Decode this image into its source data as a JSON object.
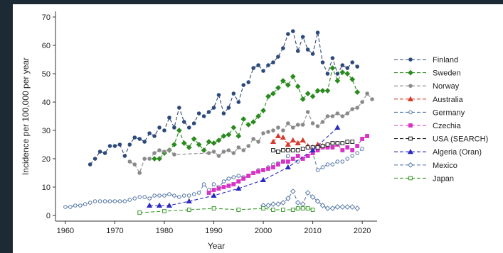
{
  "chart_data": {
    "type": "line",
    "title": "",
    "xlabel": "Year",
    "ylabel": "Incidence per 100,000 per year",
    "xlim": [
      1958,
      2023
    ],
    "ylim": [
      -2,
      72
    ],
    "xticks": [
      "1960",
      "1970",
      "1980",
      "1990",
      "2000",
      "2010",
      "2020"
    ],
    "yticks": [
      "0",
      "10",
      "20",
      "30",
      "40",
      "50",
      "60",
      "70"
    ],
    "legend": "right",
    "grid": false,
    "series": [
      {
        "name": "Finland",
        "color": "#2e4a7a",
        "marker": "circle",
        "points": [
          [
            1965,
            18
          ],
          [
            1966,
            20
          ],
          [
            1967,
            22.5
          ],
          [
            1968,
            22
          ],
          [
            1969,
            24.5
          ],
          [
            1970,
            24.5
          ],
          [
            1971,
            25
          ],
          [
            1972,
            21
          ],
          [
            1973,
            25
          ],
          [
            1974,
            27.5
          ],
          [
            1975,
            27
          ],
          [
            1976,
            26
          ],
          [
            1977,
            29
          ],
          [
            1978,
            28
          ],
          [
            1979,
            31
          ],
          [
            1980,
            30
          ],
          [
            1981,
            34.5
          ],
          [
            1982,
            31
          ],
          [
            1983,
            38
          ],
          [
            1984,
            33
          ],
          [
            1985,
            31
          ],
          [
            1986,
            32.5
          ],
          [
            1987,
            36
          ],
          [
            1988,
            35
          ],
          [
            1989,
            36.5
          ],
          [
            1990,
            38
          ],
          [
            1991,
            42.5
          ],
          [
            1992,
            36
          ],
          [
            1993,
            38
          ],
          [
            1994,
            43
          ],
          [
            1995,
            40
          ],
          [
            1996,
            46
          ],
          [
            1997,
            47
          ],
          [
            1998,
            52
          ],
          [
            1999,
            53
          ],
          [
            2000,
            51
          ],
          [
            2001,
            53
          ],
          [
            2002,
            54
          ],
          [
            2003,
            56
          ],
          [
            2004,
            59
          ],
          [
            2005,
            64
          ],
          [
            2006,
            65
          ],
          [
            2007,
            58
          ],
          [
            2008,
            63
          ],
          [
            2009,
            58.5
          ],
          [
            2010,
            57
          ],
          [
            2011,
            64.5
          ],
          [
            2012,
            54
          ],
          [
            2013,
            50
          ],
          [
            2014,
            55.5
          ],
          [
            2015,
            50
          ],
          [
            2016,
            53
          ],
          [
            2017,
            52
          ],
          [
            2018,
            54
          ],
          [
            2019,
            52.5
          ]
        ]
      },
      {
        "name": "Sweden",
        "color": "#2a8a1e",
        "marker": "diamond",
        "points": [
          [
            1978,
            20
          ],
          [
            1979,
            20
          ],
          [
            1980,
            22
          ],
          [
            1981,
            23
          ],
          [
            1982,
            25
          ],
          [
            1983,
            30
          ],
          [
            1984,
            25.5
          ],
          [
            1985,
            24
          ],
          [
            1986,
            27
          ],
          [
            1987,
            25
          ],
          [
            1988,
            23
          ],
          [
            1989,
            26
          ],
          [
            1990,
            25.5
          ],
          [
            1991,
            26.5
          ],
          [
            1992,
            28
          ],
          [
            1993,
            28.5
          ],
          [
            1994,
            31
          ],
          [
            1995,
            28
          ],
          [
            1996,
            34
          ],
          [
            1997,
            32
          ],
          [
            1998,
            33
          ],
          [
            1999,
            35
          ],
          [
            2000,
            37
          ],
          [
            2001,
            42
          ],
          [
            2002,
            43
          ],
          [
            2003,
            45
          ],
          [
            2004,
            47.5
          ],
          [
            2005,
            46
          ],
          [
            2006,
            49
          ],
          [
            2007,
            45.5
          ],
          [
            2008,
            41
          ],
          [
            2009,
            43
          ],
          [
            2010,
            42
          ],
          [
            2011,
            44
          ],
          [
            2012,
            44
          ],
          [
            2013,
            44
          ],
          [
            2014,
            52
          ],
          [
            2015,
            47.5
          ],
          [
            2016,
            50.5
          ],
          [
            2017,
            50
          ],
          [
            2018,
            48
          ],
          [
            2019,
            43.5
          ]
        ]
      },
      {
        "name": "Norway",
        "color": "#8a8a8a",
        "marker": "circle",
        "points": [
          [
            1973,
            19
          ],
          [
            1974,
            18
          ],
          [
            1975,
            15
          ],
          [
            1976,
            20
          ],
          [
            1977,
            20
          ],
          [
            1978,
            22
          ],
          [
            1979,
            23
          ],
          [
            1980,
            22.5
          ],
          [
            1981,
            23
          ],
          [
            1982,
            21.5
          ],
          [
            1989,
            22
          ],
          [
            1990,
            22.5
          ],
          [
            1991,
            21
          ],
          [
            1992,
            22.5
          ],
          [
            1993,
            23
          ],
          [
            1994,
            22
          ],
          [
            1995,
            24
          ],
          [
            1996,
            23
          ],
          [
            1997,
            24.5
          ],
          [
            1998,
            27
          ],
          [
            1999,
            26
          ],
          [
            2000,
            29
          ],
          [
            2001,
            29.5
          ],
          [
            2002,
            30
          ],
          [
            2003,
            31
          ],
          [
            2004,
            30
          ],
          [
            2005,
            32.5
          ],
          [
            2006,
            31
          ],
          [
            2007,
            32
          ],
          [
            2008,
            32
          ],
          [
            2009,
            36.5
          ],
          [
            2010,
            32.5
          ],
          [
            2011,
            31.5
          ],
          [
            2012,
            33
          ],
          [
            2013,
            35
          ],
          [
            2014,
            35
          ],
          [
            2015,
            36
          ],
          [
            2016,
            35
          ],
          [
            2017,
            36
          ],
          [
            2018,
            37.5
          ],
          [
            2019,
            38
          ],
          [
            2020,
            40
          ],
          [
            2021,
            43
          ],
          [
            2022,
            41
          ]
        ]
      },
      {
        "name": "Australia",
        "color": "#d63a2a",
        "marker": "triangle",
        "points": [
          [
            2002,
            26
          ],
          [
            2003,
            28
          ],
          [
            2004,
            27.5
          ],
          [
            2005,
            25
          ],
          [
            2006,
            26.5
          ],
          [
            2007,
            25.5
          ],
          [
            2008,
            26.5
          ],
          [
            2009,
            24.5
          ],
          [
            2010,
            24
          ],
          [
            2011,
            25
          ],
          [
            2012,
            24.5
          ]
        ]
      },
      {
        "name": "Germany",
        "color": "#5a7aa8",
        "marker": "circle-open",
        "points": [
          [
            1960,
            3
          ],
          [
            1961,
            3
          ],
          [
            1962,
            3.5
          ],
          [
            1963,
            3.5
          ],
          [
            1964,
            4
          ],
          [
            1965,
            4.5
          ],
          [
            1966,
            5
          ],
          [
            1967,
            5
          ],
          [
            1968,
            5
          ],
          [
            1969,
            5
          ],
          [
            1970,
            5
          ],
          [
            1971,
            5
          ],
          [
            1972,
            5
          ],
          [
            1973,
            5.5
          ],
          [
            1974,
            6
          ],
          [
            1975,
            6.5
          ],
          [
            1976,
            6.5
          ],
          [
            1977,
            6
          ],
          [
            1978,
            7
          ],
          [
            1979,
            7
          ],
          [
            1980,
            7
          ],
          [
            1981,
            7.5
          ],
          [
            1982,
            7
          ],
          [
            1983,
            6.5
          ],
          [
            1984,
            7
          ],
          [
            1985,
            7
          ],
          [
            1986,
            7.5
          ],
          [
            1987,
            8
          ],
          [
            1988,
            11
          ],
          [
            1989,
            9
          ],
          [
            1990,
            11
          ],
          [
            1991,
            10
          ],
          [
            1992,
            12
          ],
          [
            1993,
            13
          ],
          [
            1994,
            13.5
          ],
          [
            1995,
            14
          ],
          [
            1996,
            13.5
          ],
          [
            1997,
            14
          ],
          [
            1998,
            15
          ],
          [
            1999,
            16
          ],
          [
            2000,
            16
          ],
          [
            2001,
            17
          ],
          [
            2002,
            18
          ],
          [
            2003,
            18.5
          ],
          [
            2004,
            19
          ],
          [
            2005,
            21
          ],
          [
            2006,
            20
          ],
          [
            2007,
            19
          ],
          [
            2008,
            20
          ],
          [
            2009,
            21
          ],
          [
            2010,
            22
          ],
          [
            2011,
            16
          ],
          [
            2012,
            17
          ],
          [
            2013,
            18
          ],
          [
            2014,
            18
          ],
          [
            2015,
            19
          ],
          [
            2016,
            19
          ],
          [
            2017,
            20
          ],
          [
            2018,
            21
          ],
          [
            2019,
            22
          ],
          [
            2020,
            23.5
          ]
        ]
      },
      {
        "name": "Czechia",
        "color": "#d633c4",
        "marker": "square",
        "points": [
          [
            1989,
            8
          ],
          [
            1990,
            9
          ],
          [
            1991,
            9.5
          ],
          [
            1992,
            10
          ],
          [
            1993,
            10.5
          ],
          [
            1994,
            11
          ],
          [
            1995,
            12
          ],
          [
            1996,
            13
          ],
          [
            1997,
            14
          ],
          [
            1998,
            15
          ],
          [
            1999,
            15.5
          ],
          [
            2000,
            16
          ],
          [
            2001,
            16.5
          ],
          [
            2002,
            17
          ],
          [
            2003,
            18
          ],
          [
            2004,
            19
          ],
          [
            2005,
            19
          ],
          [
            2006,
            20
          ],
          [
            2007,
            21
          ],
          [
            2008,
            20
          ],
          [
            2009,
            21
          ],
          [
            2010,
            22
          ],
          [
            2011,
            23
          ],
          [
            2012,
            24
          ],
          [
            2013,
            24
          ],
          [
            2014,
            24
          ],
          [
            2015,
            25
          ],
          [
            2016,
            23
          ],
          [
            2017,
            24
          ],
          [
            2018,
            23
          ],
          [
            2019,
            24.5
          ],
          [
            2020,
            27
          ],
          [
            2021,
            28
          ]
        ]
      },
      {
        "name": "USA (SEARCH)",
        "color": "#222222",
        "marker": "square-open",
        "points": [
          [
            2002,
            23
          ],
          [
            2003,
            22.5
          ],
          [
            2004,
            23
          ],
          [
            2005,
            23
          ],
          [
            2006,
            23
          ],
          [
            2007,
            23
          ],
          [
            2008,
            23.5
          ],
          [
            2009,
            24
          ],
          [
            2010,
            24
          ],
          [
            2011,
            24
          ],
          [
            2012,
            24.5
          ],
          [
            2013,
            25
          ],
          [
            2014,
            25.5
          ],
          [
            2015,
            25.5
          ],
          [
            2016,
            25.5
          ],
          [
            2017,
            26
          ],
          [
            2018,
            26
          ]
        ]
      },
      {
        "name": "Algeria (Oran)",
        "color": "#2a2ac0",
        "marker": "triangle",
        "points": [
          [
            1977,
            3.5
          ],
          [
            1979,
            3.5
          ],
          [
            1981,
            3.5
          ],
          [
            1985,
            5
          ],
          [
            1990,
            7
          ],
          [
            1995,
            9.5
          ],
          [
            2000,
            12.5
          ],
          [
            2005,
            17
          ],
          [
            2010,
            23
          ],
          [
            2015,
            31
          ]
        ]
      },
      {
        "name": "Mexico",
        "color": "#5a7aa8",
        "marker": "diamond-open",
        "points": [
          [
            2000,
            3.5
          ],
          [
            2001,
            3.5
          ],
          [
            2002,
            4
          ],
          [
            2003,
            4
          ],
          [
            2004,
            4.5
          ],
          [
            2005,
            6
          ],
          [
            2006,
            8.5
          ],
          [
            2007,
            4.5
          ],
          [
            2008,
            4
          ],
          [
            2009,
            8
          ],
          [
            2010,
            6.5
          ],
          [
            2011,
            5
          ],
          [
            2012,
            3.5
          ],
          [
            2013,
            2.5
          ],
          [
            2014,
            2.5
          ],
          [
            2015,
            3
          ],
          [
            2016,
            3
          ],
          [
            2017,
            3
          ],
          [
            2018,
            3
          ],
          [
            2019,
            2.5
          ]
        ]
      },
      {
        "name": "Japan",
        "color": "#3a9a2a",
        "marker": "square-open",
        "points": [
          [
            1975,
            1
          ],
          [
            1980,
            1.5
          ],
          [
            1985,
            2
          ],
          [
            1990,
            2.5
          ],
          [
            1995,
            2
          ],
          [
            2000,
            2.5
          ],
          [
            2002,
            2
          ],
          [
            2004,
            2
          ],
          [
            2006,
            2
          ],
          [
            2007,
            2.5
          ],
          [
            2008,
            2.5
          ],
          [
            2009,
            2.5
          ],
          [
            2010,
            2
          ]
        ]
      }
    ]
  }
}
